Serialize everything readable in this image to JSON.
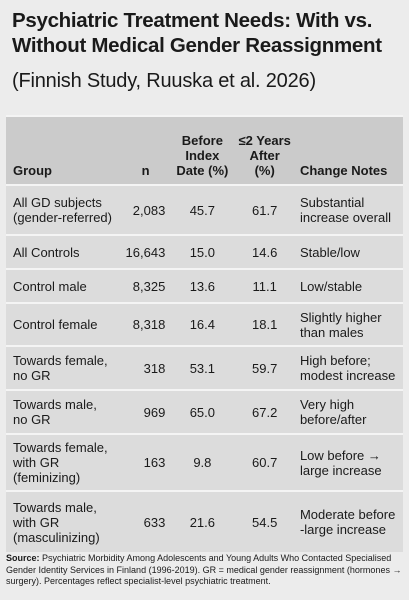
{
  "header": {
    "title": "Psychiatric Treatment Needs: With vs.\nWithout Medical Gender Reassignment",
    "subtitle": "(Finnish Study, Ruuska et al. 2026)"
  },
  "table": {
    "columns": [
      "Group",
      "n",
      "Before\nIndex\nDate (%)",
      "≤2 Years\nAfter\n(%)",
      "Change Notes"
    ],
    "rows": [
      [
        "All GD subjects\n(gender-referred)",
        "2,083",
        "45.7",
        "61.7",
        "Substantial\nincrease overall"
      ],
      [
        "All Controls",
        "16,643",
        "15.0",
        "14.6",
        "Stable/low"
      ],
      [
        "Control male",
        "8,325",
        "13.6",
        "11.1",
        "Low/stable"
      ],
      [
        "Control female",
        "8,318",
        "16.4",
        "18.1",
        "Slightly higher\nthan males"
      ],
      [
        "Towards female,\nno GR",
        "318",
        "53.1",
        "59.7",
        "High before;\nmodest increase"
      ],
      [
        "Towards male,\nno GR",
        "969",
        "65.0",
        "67.2",
        "Very high\nbefore/after"
      ],
      [
        "Towards female,\nwith GR\n(feminizing)",
        "163",
        "9.8",
        "60.7",
        "Low before →\nlarge increase"
      ],
      [
        "Towards male,\nwith GR\n(masculinizing)",
        "633",
        "21.6",
        "54.5",
        "Moderate before\n-large increase"
      ]
    ]
  },
  "footer": {
    "source_label": "Source:",
    "source_text": "Psychiatric Morbidity Among Adolescents and Young Adults Who Contacted Specialised Gender Identity Services in Finland (1996-2019). GR = medical gender reassignment (hormones → surgery). Percentages reflect specialist-level psychiatric treatment."
  }
}
